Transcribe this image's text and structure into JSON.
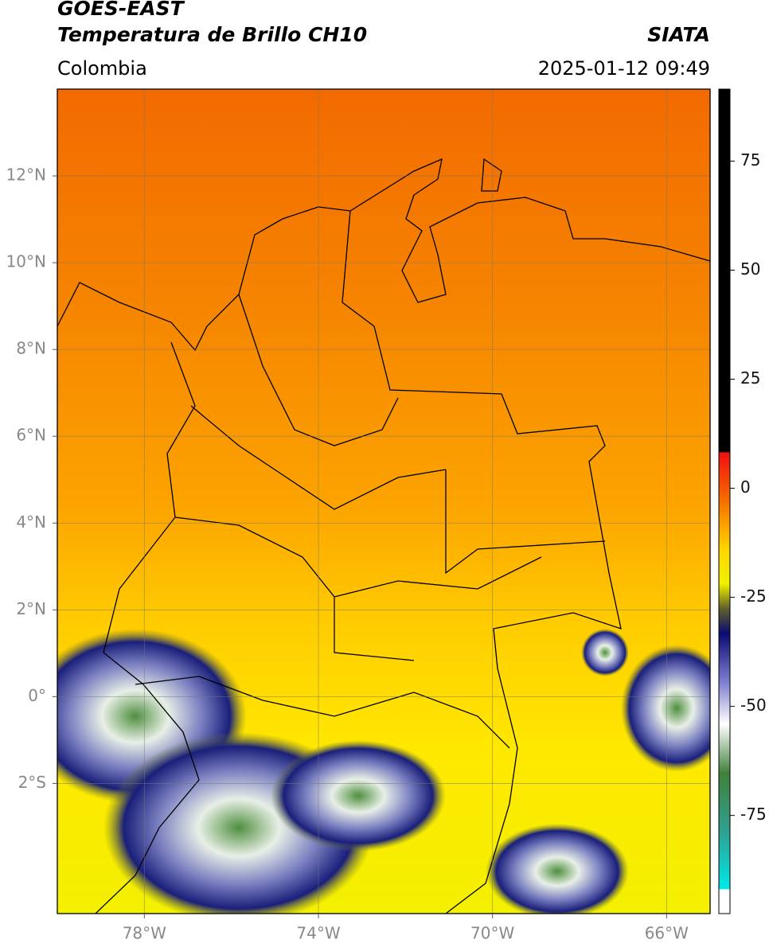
{
  "header": {
    "satellite": "GOES-EAST",
    "product": "Temperatura de Brillo CH10",
    "brand": "SIATA",
    "region": "Colombia",
    "datetime": "2025-01-12 09:49"
  },
  "map": {
    "xlim": [
      -80,
      -65
    ],
    "ylim": [
      -5,
      14
    ],
    "xticks": [
      {
        "value": -78,
        "label": "78°W"
      },
      {
        "value": -74,
        "label": "74°W"
      },
      {
        "value": -70,
        "label": "70°W"
      },
      {
        "value": -66,
        "label": "66°W"
      }
    ],
    "yticks": [
      {
        "value": 12,
        "label": "12°N"
      },
      {
        "value": 10,
        "label": "10°N"
      },
      {
        "value": 8,
        "label": "8°N"
      },
      {
        "value": 6,
        "label": "6°N"
      },
      {
        "value": 4,
        "label": "4°N"
      },
      {
        "value": 2,
        "label": "2°N"
      },
      {
        "value": 0,
        "label": "0°"
      },
      {
        "value": -2,
        "label": "2°S"
      }
    ],
    "grid": true
  },
  "colorbar": {
    "lim": [
      -97.5,
      91.5
    ],
    "ticks": [
      75,
      50,
      25,
      0,
      -25,
      -50,
      -75
    ]
  }
}
